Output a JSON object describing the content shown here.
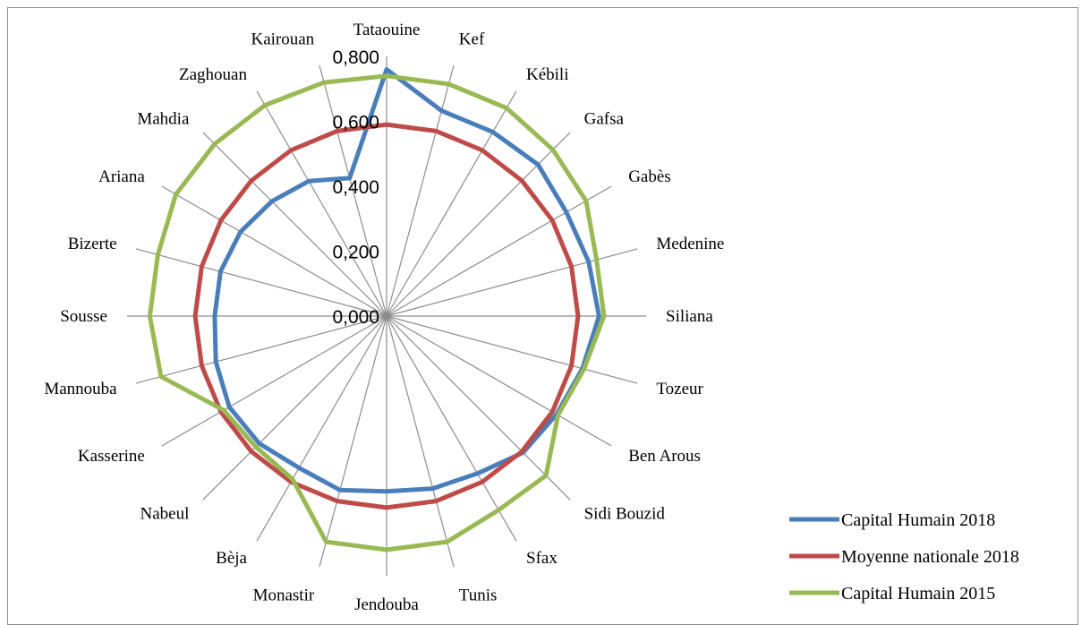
{
  "chart_data": {
    "type": "radar",
    "categories": [
      "Tataouine",
      "Kef",
      "Kébili",
      "Gafsa",
      "Gabès",
      "Medenine",
      "Siliana",
      "Tozeur",
      "Ben Arous",
      "Sidi Bouzid",
      "Sfax",
      "Tunis",
      "Jendouba",
      "Monastir",
      "Bèja",
      "Nabeul",
      "Kasserine",
      "Mannouba",
      "Sousse",
      "Bizerte",
      "Ariana",
      "Mahdia",
      "Zaghouan",
      "Kairouan"
    ],
    "r_ticks": [
      "0,000",
      "0,200",
      "0,400",
      "0,600",
      "0,800"
    ],
    "rlim": [
      0,
      0.8
    ],
    "grid": "spokes-only",
    "legend_position": "bottom-right",
    "series": [
      {
        "name": "Capital Humain 2018",
        "color": "#4a7ebb",
        "values": [
          0.76,
          0.655,
          0.655,
          0.66,
          0.64,
          0.645,
          0.655,
          0.625,
          0.605,
          0.595,
          0.56,
          0.55,
          0.54,
          0.555,
          0.54,
          0.555,
          0.56,
          0.545,
          0.53,
          0.53,
          0.52,
          0.5,
          0.48,
          0.44
        ]
      },
      {
        "name": "Moyenne nationale 2018",
        "color": "#be4b48",
        "values": [
          0.59,
          0.59,
          0.59,
          0.59,
          0.59,
          0.59,
          0.59,
          0.59,
          0.59,
          0.59,
          0.59,
          0.59,
          0.59,
          0.59,
          0.59,
          0.59,
          0.59,
          0.59,
          0.59,
          0.59,
          0.59,
          0.59,
          0.59,
          0.59
        ]
      },
      {
        "name": "Capital Humain 2015",
        "color": "#98b954",
        "values": [
          0.74,
          0.74,
          0.74,
          0.725,
          0.71,
          0.67,
          0.67,
          0.63,
          0.61,
          0.695,
          0.69,
          0.72,
          0.72,
          0.72,
          0.58,
          0.57,
          0.58,
          0.72,
          0.73,
          0.73,
          0.75,
          0.75,
          0.75,
          0.745
        ]
      }
    ]
  }
}
